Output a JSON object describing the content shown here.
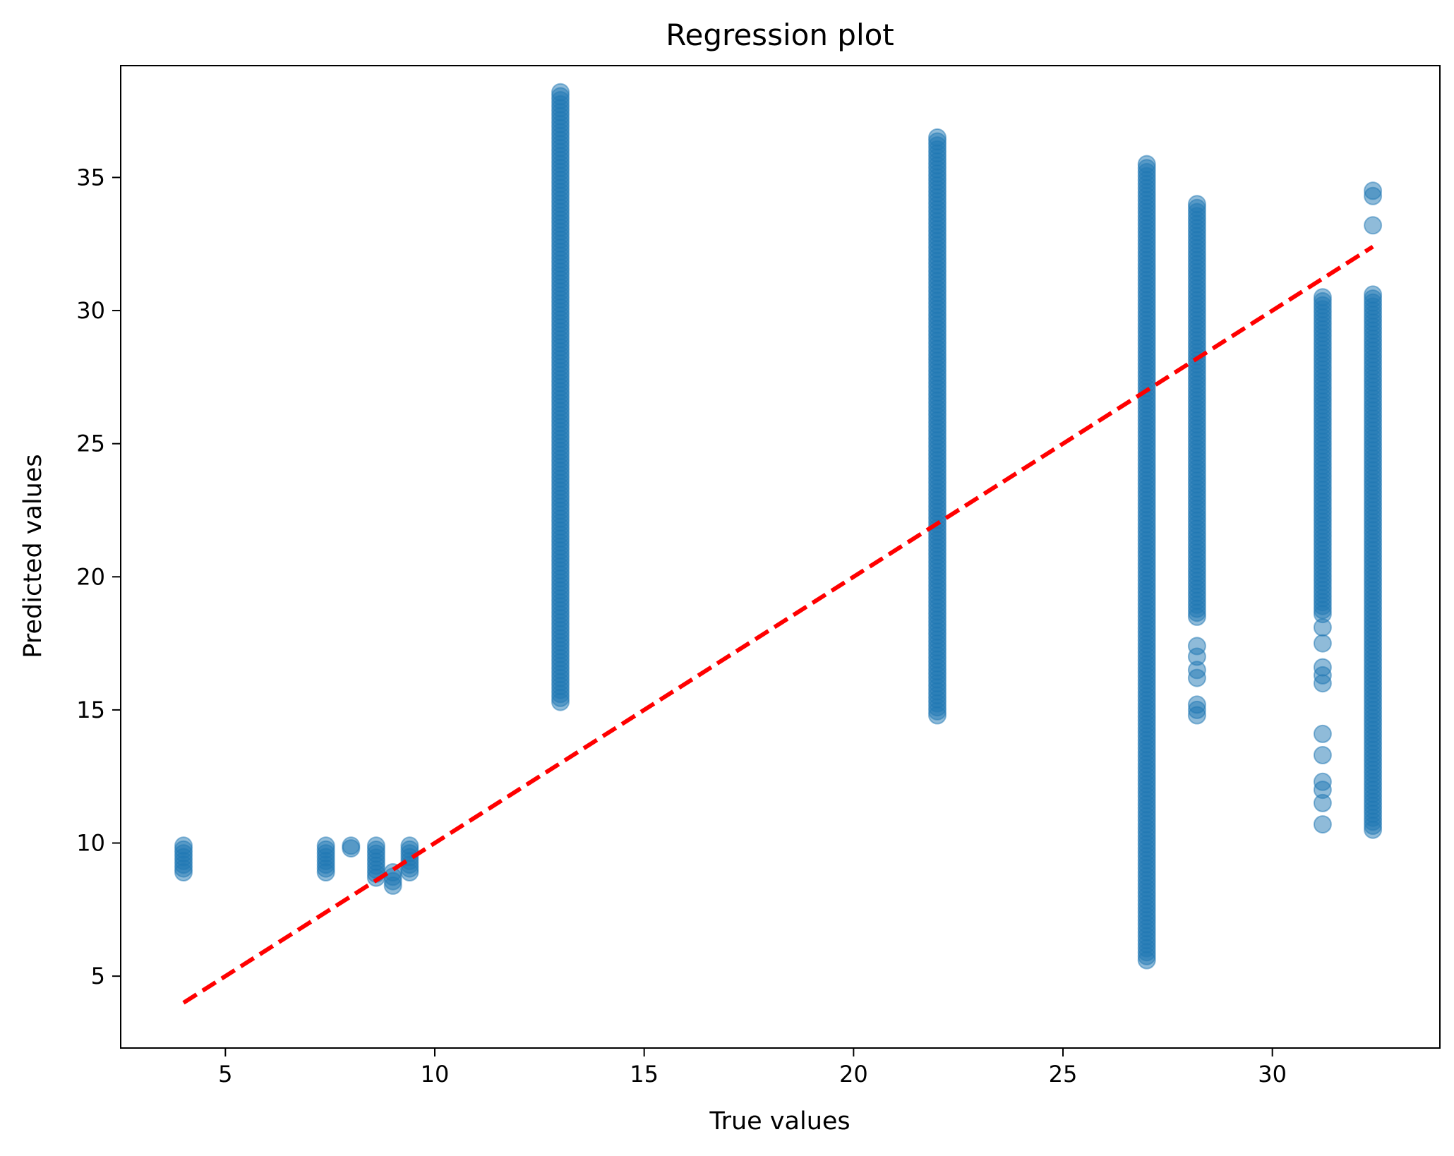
{
  "chart_data": {
    "type": "scatter",
    "title": "Regression plot",
    "xlabel": "True values",
    "ylabel": "Predicted values",
    "xlim": [
      2.5,
      34.0
    ],
    "ylim": [
      2.3,
      39.2
    ],
    "xticks": [
      5,
      10,
      15,
      20,
      25,
      30
    ],
    "yticks": [
      5,
      10,
      15,
      20,
      25,
      30,
      35
    ],
    "grid": false,
    "legend": "none",
    "colors": {
      "points": "#1f77b4",
      "reference_line": "#ff0000"
    },
    "point_alpha": 0.5,
    "reference_line": {
      "x": [
        4.0,
        32.4
      ],
      "y": [
        4.0,
        32.4
      ],
      "style": "dashed"
    },
    "point_columns": [
      {
        "x": 4.0,
        "y_range": [
          8.9,
          9.9
        ],
        "outliers": []
      },
      {
        "x": 7.4,
        "y_range": [
          8.9,
          9.9
        ],
        "outliers": []
      },
      {
        "x": 8.0,
        "y_range": [
          9.8,
          9.9
        ],
        "outliers": []
      },
      {
        "x": 8.6,
        "y_range": [
          8.7,
          9.9
        ],
        "outliers": []
      },
      {
        "x": 9.0,
        "y_range": [
          8.4,
          8.9
        ],
        "outliers": []
      },
      {
        "x": 9.4,
        "y_range": [
          8.9,
          9.9
        ],
        "outliers": []
      },
      {
        "x": 13.0,
        "y_range": [
          15.3,
          38.2
        ],
        "outliers": []
      },
      {
        "x": 22.0,
        "y_range": [
          14.8,
          36.5
        ],
        "outliers": []
      },
      {
        "x": 27.0,
        "y_range": [
          5.6,
          35.5
        ],
        "outliers": []
      },
      {
        "x": 28.2,
        "y_range": [
          18.5,
          34.0
        ],
        "outliers": [
          14.8,
          15.0,
          15.2,
          16.2,
          16.5,
          17.0,
          17.4
        ]
      },
      {
        "x": 31.2,
        "y_range": [
          18.6,
          30.5
        ],
        "outliers": [
          10.7,
          11.5,
          12.0,
          12.3,
          13.3,
          14.1,
          16.0,
          16.3,
          16.6,
          17.5,
          18.1
        ]
      },
      {
        "x": 32.4,
        "y_range": [
          10.5,
          30.6
        ],
        "outliers": [
          33.2,
          34.3,
          34.5
        ]
      }
    ]
  }
}
